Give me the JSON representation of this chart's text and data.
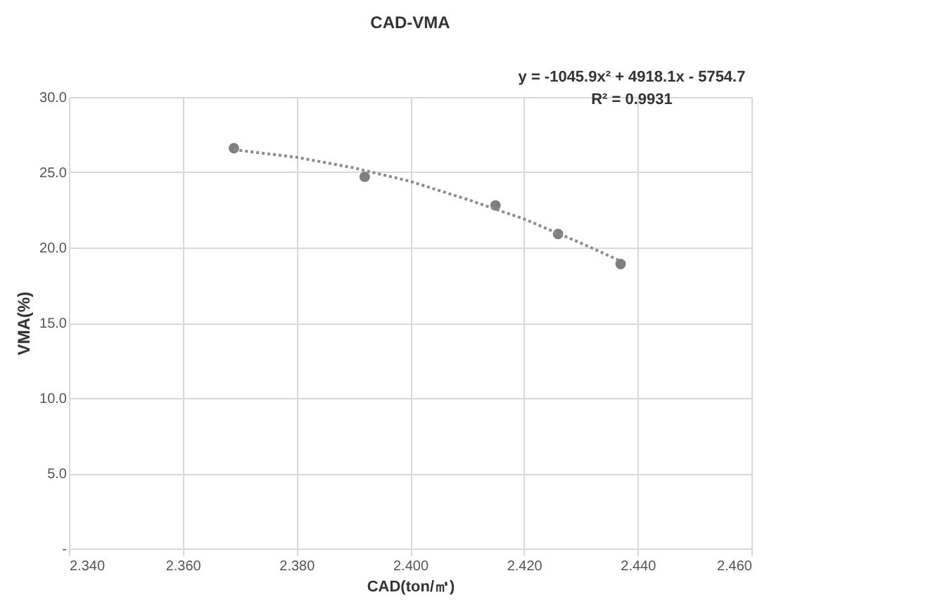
{
  "chart_data": {
    "type": "scatter",
    "title": "CAD-VMA",
    "xlabel": "CAD(ton/㎥)",
    "ylabel": "VMA(%)",
    "annotations": [
      "y = -1045.9x² + 4918.1x - 5754.7",
      "R² = 0.9931"
    ],
    "series": [
      {
        "color": "#7f7f7f",
        "x": [
          2.369,
          2.392,
          2.415,
          2.426,
          2.437
        ],
        "values": [
          26.6,
          24.7,
          22.8,
          20.9,
          18.9
        ],
        "marker": "circle"
      },
      {
        "type": "line",
        "color": "#8c8c8c",
        "line_style": "dotted",
        "x": [
          2.369,
          2.38,
          2.39,
          2.4,
          2.41,
          2.42,
          2.43,
          2.437
        ],
        "values": [
          26.5,
          26.0,
          25.3,
          24.4,
          23.2,
          21.9,
          20.3,
          19.1
        ]
      }
    ],
    "xlim": [
      2.34,
      2.46
    ],
    "xticks": [
      {
        "value": 2.34,
        "label": "2.340"
      },
      {
        "value": 2.36,
        "label": "2.360"
      },
      {
        "value": 2.38,
        "label": "2.380"
      },
      {
        "value": 2.4,
        "label": "2.400"
      },
      {
        "value": 2.42,
        "label": "2.420"
      },
      {
        "value": 2.44,
        "label": "2.440"
      },
      {
        "value": 2.46,
        "label": "2.460"
      }
    ],
    "ylim": [
      0,
      30
    ],
    "yticks": [
      {
        "value": 0,
        "label": "-"
      },
      {
        "value": 5,
        "label": "5.0"
      },
      {
        "value": 10,
        "label": "10.0"
      },
      {
        "value": 15,
        "label": "15.0"
      },
      {
        "value": 20,
        "label": "20.0"
      },
      {
        "value": 25,
        "label": "25.0"
      },
      {
        "value": 30,
        "label": "30.0"
      }
    ],
    "grid": true
  }
}
